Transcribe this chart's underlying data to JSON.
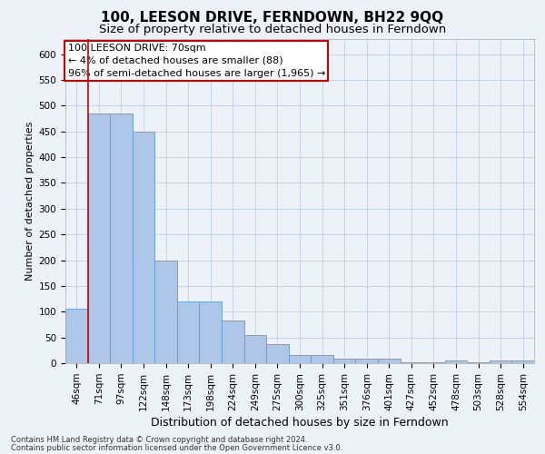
{
  "title": "100, LEESON DRIVE, FERNDOWN, BH22 9QQ",
  "subtitle": "Size of property relative to detached houses in Ferndown",
  "xlabel": "Distribution of detached houses by size in Ferndown",
  "ylabel": "Number of detached properties",
  "categories": [
    "46sqm",
    "71sqm",
    "97sqm",
    "122sqm",
    "148sqm",
    "173sqm",
    "198sqm",
    "224sqm",
    "249sqm",
    "275sqm",
    "300sqm",
    "325sqm",
    "351sqm",
    "376sqm",
    "401sqm",
    "427sqm",
    "452sqm",
    "478sqm",
    "503sqm",
    "528sqm",
    "554sqm"
  ],
  "values": [
    105,
    485,
    485,
    450,
    200,
    120,
    120,
    82,
    55,
    37,
    15,
    15,
    8,
    8,
    8,
    2,
    2,
    5,
    2,
    5,
    5
  ],
  "bar_color": "#aec6e8",
  "bar_edge_color": "#5b9bd5",
  "grid_color": "#c8d4e8",
  "background_color": "#edf2f8",
  "annotation_box_text": "100 LEESON DRIVE: 70sqm\n← 4% of detached houses are smaller (88)\n96% of semi-detached houses are larger (1,965) →",
  "annotation_box_color": "white",
  "annotation_box_edge_color": "#cc0000",
  "vline_color": "#cc0000",
  "ylim": [
    0,
    630
  ],
  "yticks": [
    0,
    50,
    100,
    150,
    200,
    250,
    300,
    350,
    400,
    450,
    500,
    550,
    600
  ],
  "footer_line1": "Contains HM Land Registry data © Crown copyright and database right 2024.",
  "footer_line2": "Contains public sector information licensed under the Open Government Licence v3.0.",
  "title_fontsize": 11,
  "subtitle_fontsize": 9.5,
  "xlabel_fontsize": 9,
  "ylabel_fontsize": 8,
  "tick_fontsize": 7.5,
  "annotation_fontsize": 8,
  "footer_fontsize": 6
}
